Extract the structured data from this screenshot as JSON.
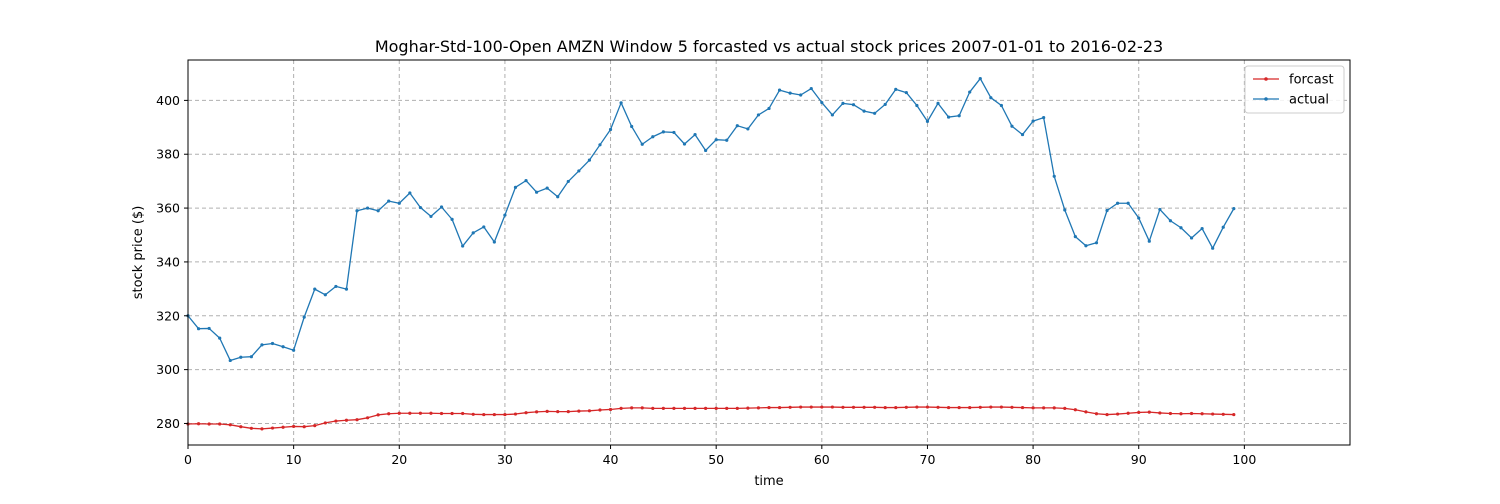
{
  "chart_data": {
    "type": "line",
    "title": "Moghar-Std-100-Open AMZN Window 5 forcasted vs actual stock prices 2007-01-01 to 2016-02-23",
    "xlabel": "time",
    "ylabel": "stock price ($)",
    "xlim": [
      0,
      110
    ],
    "ylim": [
      272,
      415
    ],
    "xticks": [
      0,
      10,
      20,
      30,
      40,
      50,
      60,
      70,
      80,
      90,
      100
    ],
    "yticks": [
      280,
      300,
      320,
      340,
      360,
      380,
      400
    ],
    "grid": true,
    "legend_position": "top-right",
    "series": [
      {
        "name": "forcast",
        "color": "#d62728",
        "values": [
          279.8,
          279.9,
          279.8,
          279.8,
          279.5,
          278.8,
          278.2,
          278.0,
          278.3,
          278.6,
          278.9,
          278.8,
          279.2,
          280.2,
          280.9,
          281.2,
          281.4,
          282.1,
          283.2,
          283.6,
          283.8,
          283.8,
          283.8,
          283.8,
          283.7,
          283.7,
          283.7,
          283.4,
          283.3,
          283.3,
          283.3,
          283.5,
          284.0,
          284.3,
          284.5,
          284.4,
          284.4,
          284.6,
          284.7,
          285.0,
          285.2,
          285.6,
          285.8,
          285.8,
          285.6,
          285.6,
          285.6,
          285.6,
          285.6,
          285.6,
          285.6,
          285.6,
          285.6,
          285.7,
          285.8,
          285.9,
          285.9,
          286.0,
          286.1,
          286.1,
          286.1,
          286.1,
          286.0,
          286.0,
          286.0,
          286.0,
          285.9,
          285.9,
          286.0,
          286.1,
          286.1,
          286.0,
          285.9,
          285.9,
          285.9,
          286.0,
          286.1,
          286.1,
          286.0,
          285.9,
          285.8,
          285.8,
          285.8,
          285.6,
          285.1,
          284.3,
          283.6,
          283.3,
          283.5,
          283.8,
          284.1,
          284.2,
          283.9,
          283.7,
          283.6,
          283.7,
          283.6,
          283.5,
          283.4,
          283.3
        ]
      },
      {
        "name": "actual",
        "color": "#1f77b4",
        "values": [
          320.0,
          315.2,
          315.3,
          311.7,
          303.4,
          304.6,
          304.8,
          309.2,
          309.7,
          308.5,
          307.2,
          319.5,
          329.9,
          327.8,
          330.9,
          329.9,
          359.0,
          360.0,
          359.0,
          362.6,
          361.8,
          365.6,
          360.2,
          356.9,
          360.4,
          355.8,
          345.9,
          350.8,
          353.0,
          347.4,
          357.4,
          367.7,
          370.2,
          365.9,
          367.4,
          364.2,
          369.9,
          373.8,
          377.8,
          383.5,
          389.2,
          399.1,
          390.3,
          383.7,
          386.5,
          388.3,
          388.1,
          383.8,
          387.3,
          381.4,
          385.4,
          385.2,
          390.6,
          389.4,
          394.6,
          397.0,
          403.8,
          402.7,
          402.0,
          404.4,
          399.2,
          394.6,
          398.9,
          398.4,
          396.0,
          395.2,
          398.5,
          404.1,
          402.9,
          398.1,
          392.2,
          398.9,
          393.8,
          394.3,
          403.1,
          408.1,
          401.0,
          398.1,
          390.4,
          387.3,
          392.3,
          393.6,
          371.8,
          359.3,
          349.4,
          346.0,
          347.1,
          359.1,
          361.8,
          361.8,
          356.3,
          347.7,
          359.5,
          355.3,
          352.7,
          348.9,
          352.4,
          345.1,
          352.9,
          359.8
        ]
      }
    ]
  }
}
